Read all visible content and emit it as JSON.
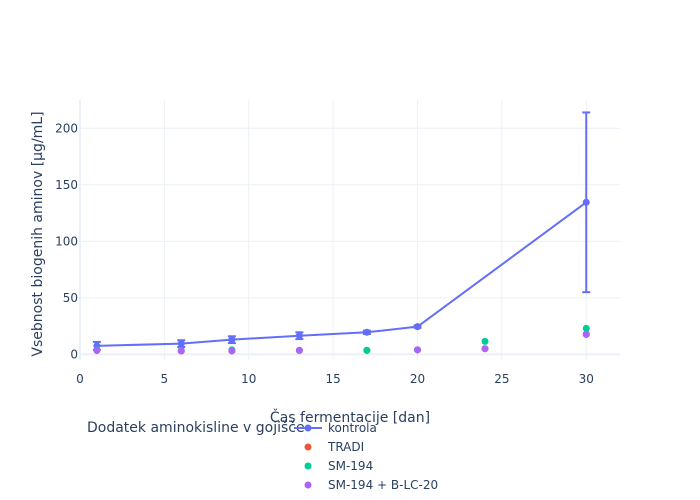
{
  "chart_data": {
    "type": "scatter",
    "xlabel": "Čas fermentacije [dan]",
    "ylabel": "Vsebnost biogenih aminov [µg/mL]",
    "xlim": [
      0,
      32
    ],
    "ylim": [
      -5,
      225
    ],
    "xticks": [
      0,
      5,
      10,
      15,
      20,
      25,
      30
    ],
    "yticks": [
      0,
      50,
      100,
      150,
      200
    ],
    "grid": true,
    "legend": {
      "title": "Dodatek aminokisline v gojišče",
      "placement": "bottom"
    },
    "series": [
      {
        "name": "kontrola",
        "mode": "lines+markers",
        "color": "#636efa",
        "x": [
          1,
          6,
          9,
          13,
          17,
          20,
          30
        ],
        "y": [
          7.5,
          9.5,
          13,
          16.5,
          19.5,
          24.5,
          134.5
        ],
        "error_y": [
          3.5,
          3,
          3,
          3,
          1.5,
          1,
          79.5
        ]
      },
      {
        "name": "TRADI",
        "mode": "markers",
        "color": "#EF553B",
        "x": [
          1,
          6,
          9,
          13,
          17,
          20,
          24,
          30
        ],
        "y": [
          3.5,
          3,
          3.5,
          3.5,
          3.5,
          4,
          5,
          18
        ]
      },
      {
        "name": "SM-194",
        "mode": "markers",
        "color": "#00cc96",
        "x": [
          1,
          6,
          9,
          13,
          17,
          20,
          24,
          30
        ],
        "y": [
          4,
          3.5,
          4,
          3.5,
          3.5,
          4,
          11.5,
          23
        ]
      },
      {
        "name": "SM-194 + B-LC-20",
        "mode": "markers",
        "color": "#ab63fa",
        "x": [
          1,
          6,
          9,
          13,
          20,
          24,
          30
        ],
        "y": [
          3.5,
          3,
          3,
          3.5,
          4,
          5,
          17.5
        ]
      }
    ]
  }
}
